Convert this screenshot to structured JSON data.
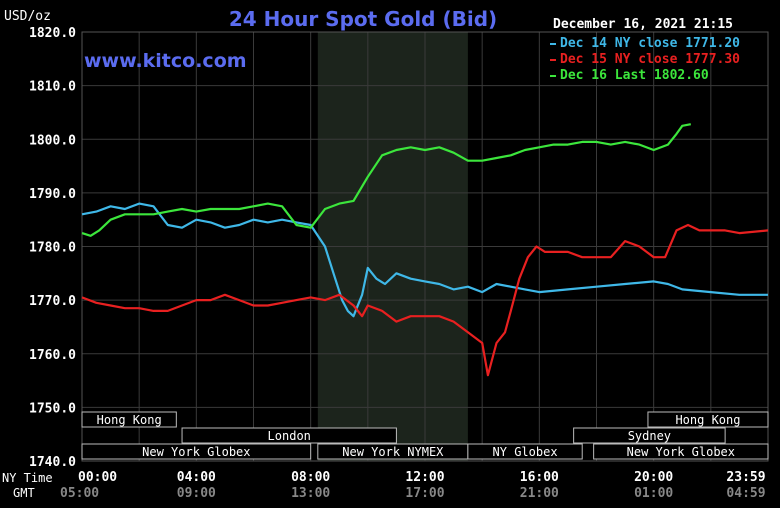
{
  "chart_data": {
    "type": "line",
    "title": "24 Hour Spot Gold (Bid)",
    "unit_label": "USD/oz",
    "watermark": "www.kitco.com",
    "timestamp": "December 16, 2021 21:15",
    "ylim": [
      1740,
      1820
    ],
    "y_ticks": [
      "1820.0",
      "1810.0",
      "1800.0",
      "1790.0",
      "1780.0",
      "1770.0",
      "1760.0",
      "1750.0",
      "1740.0"
    ],
    "x_labels_title": "NY Time",
    "x_ticks": [
      "00:00",
      "04:00",
      "08:00",
      "12:00",
      "16:00",
      "20:00",
      "23:59"
    ],
    "gmt_title": "GMT",
    "gmt_ticks": [
      "05:00",
      "09:00",
      "13:00",
      "17:00",
      "21:00",
      "01:00",
      "04:59"
    ],
    "grid": true,
    "legend_position": "top-right",
    "highlight_span_hours": [
      8.25,
      13.5
    ],
    "series": [
      {
        "name": "Dec 14 NY close",
        "legend_value": "1771.20",
        "color": "#3fb8e8",
        "points": [
          [
            0,
            1786
          ],
          [
            0.5,
            1786.5
          ],
          [
            1,
            1787.5
          ],
          [
            1.5,
            1787
          ],
          [
            2,
            1788
          ],
          [
            2.5,
            1787.5
          ],
          [
            3,
            1784
          ],
          [
            3.5,
            1783.5
          ],
          [
            4,
            1785
          ],
          [
            4.5,
            1784.5
          ],
          [
            5,
            1783.5
          ],
          [
            5.5,
            1784
          ],
          [
            6,
            1785
          ],
          [
            6.5,
            1784.5
          ],
          [
            7,
            1785
          ],
          [
            7.5,
            1784.5
          ],
          [
            8,
            1784
          ],
          [
            8.5,
            1780
          ],
          [
            8.8,
            1775
          ],
          [
            9.1,
            1770
          ],
          [
            9.3,
            1768
          ],
          [
            9.5,
            1767
          ],
          [
            9.8,
            1771
          ],
          [
            10,
            1776
          ],
          [
            10.3,
            1774
          ],
          [
            10.6,
            1773
          ],
          [
            11,
            1775
          ],
          [
            11.5,
            1774
          ],
          [
            12,
            1773.5
          ],
          [
            12.5,
            1773
          ],
          [
            13,
            1772
          ],
          [
            13.5,
            1772.5
          ],
          [
            14,
            1771.5
          ],
          [
            14.5,
            1773
          ],
          [
            15,
            1772.5
          ],
          [
            15.5,
            1772
          ],
          [
            16,
            1771.5
          ],
          [
            17,
            1772
          ],
          [
            18,
            1772.5
          ],
          [
            19,
            1773
          ],
          [
            20,
            1773.5
          ],
          [
            20.5,
            1773
          ],
          [
            21,
            1772
          ],
          [
            22,
            1771.5
          ],
          [
            23,
            1771
          ],
          [
            24,
            1771
          ]
        ]
      },
      {
        "name": "Dec 15 NY close",
        "legend_value": "1777.30",
        "color": "#e82020",
        "points": [
          [
            0,
            1770.5
          ],
          [
            0.5,
            1769.5
          ],
          [
            1,
            1769
          ],
          [
            1.5,
            1768.5
          ],
          [
            2,
            1768.5
          ],
          [
            2.5,
            1768
          ],
          [
            3,
            1768
          ],
          [
            3.5,
            1769
          ],
          [
            4,
            1770
          ],
          [
            4.5,
            1770
          ],
          [
            5,
            1771
          ],
          [
            5.5,
            1770
          ],
          [
            6,
            1769
          ],
          [
            6.5,
            1769
          ],
          [
            7,
            1769.5
          ],
          [
            7.5,
            1770
          ],
          [
            8,
            1770.5
          ],
          [
            8.5,
            1770
          ],
          [
            9,
            1771
          ],
          [
            9.5,
            1769
          ],
          [
            9.8,
            1767
          ],
          [
            10,
            1769
          ],
          [
            10.5,
            1768
          ],
          [
            11,
            1766
          ],
          [
            11.5,
            1767
          ],
          [
            12,
            1767
          ],
          [
            12.5,
            1767
          ],
          [
            13,
            1766
          ],
          [
            13.5,
            1764
          ],
          [
            14,
            1762
          ],
          [
            14.2,
            1756
          ],
          [
            14.5,
            1762
          ],
          [
            14.8,
            1764
          ],
          [
            15,
            1768
          ],
          [
            15.3,
            1774
          ],
          [
            15.6,
            1778
          ],
          [
            15.9,
            1780
          ],
          [
            16.2,
            1779
          ],
          [
            16.5,
            1779
          ],
          [
            17,
            1779
          ],
          [
            17.5,
            1778
          ],
          [
            18,
            1778
          ],
          [
            18.5,
            1778
          ],
          [
            19,
            1781
          ],
          [
            19.5,
            1780
          ],
          [
            20,
            1778
          ],
          [
            20.4,
            1778
          ],
          [
            20.8,
            1783
          ],
          [
            21.2,
            1784
          ],
          [
            21.6,
            1783
          ],
          [
            22,
            1783
          ],
          [
            22.5,
            1783
          ],
          [
            23,
            1782.5
          ],
          [
            24,
            1783
          ]
        ]
      },
      {
        "name": "Dec 16 Last",
        "legend_value": "1802.60",
        "color": "#3ce63c",
        "points": [
          [
            0,
            1782.5
          ],
          [
            0.3,
            1782
          ],
          [
            0.6,
            1783
          ],
          [
            1,
            1785
          ],
          [
            1.5,
            1786
          ],
          [
            2,
            1786
          ],
          [
            2.5,
            1786
          ],
          [
            3,
            1786.5
          ],
          [
            3.5,
            1787
          ],
          [
            4,
            1786.5
          ],
          [
            4.5,
            1787
          ],
          [
            5,
            1787
          ],
          [
            5.5,
            1787
          ],
          [
            6,
            1787.5
          ],
          [
            6.5,
            1788
          ],
          [
            7,
            1787.5
          ],
          [
            7.5,
            1784
          ],
          [
            8,
            1783.5
          ],
          [
            8.5,
            1787
          ],
          [
            9,
            1788
          ],
          [
            9.5,
            1788.5
          ],
          [
            10,
            1793
          ],
          [
            10.5,
            1797
          ],
          [
            11,
            1798
          ],
          [
            11.5,
            1798.5
          ],
          [
            12,
            1798
          ],
          [
            12.5,
            1798.5
          ],
          [
            13,
            1797.5
          ],
          [
            13.5,
            1796
          ],
          [
            14,
            1796
          ],
          [
            14.5,
            1796.5
          ],
          [
            15,
            1797
          ],
          [
            15.5,
            1798
          ],
          [
            16,
            1798.5
          ],
          [
            16.5,
            1799
          ],
          [
            17,
            1799
          ],
          [
            17.5,
            1799.5
          ],
          [
            18,
            1799.5
          ],
          [
            18.5,
            1799
          ],
          [
            19,
            1799.5
          ],
          [
            19.5,
            1799
          ],
          [
            20,
            1798
          ],
          [
            20.5,
            1799
          ],
          [
            20.8,
            1801
          ],
          [
            21,
            1802.5
          ],
          [
            21.3,
            1802.8
          ]
        ]
      }
    ],
    "sessions": [
      {
        "label": "Hong Kong",
        "start": 0,
        "end": 3.3,
        "row": 0
      },
      {
        "label": "Hong Kong",
        "start": 19.8,
        "end": 24,
        "row": 0
      },
      {
        "label": "London",
        "start": 3.5,
        "end": 11,
        "row": 1
      },
      {
        "label": "Sydney",
        "start": 17.2,
        "end": 22.5,
        "row": 1
      },
      {
        "label": "New York Globex",
        "start": 0,
        "end": 8,
        "row": 2
      },
      {
        "label": "New York NYMEX",
        "start": 8.25,
        "end": 13.5,
        "row": 2
      },
      {
        "label": "NY Globex",
        "start": 13.5,
        "end": 17.5,
        "row": 2
      },
      {
        "label": "New York Globex",
        "start": 17.9,
        "end": 24,
        "row": 2
      }
    ]
  }
}
